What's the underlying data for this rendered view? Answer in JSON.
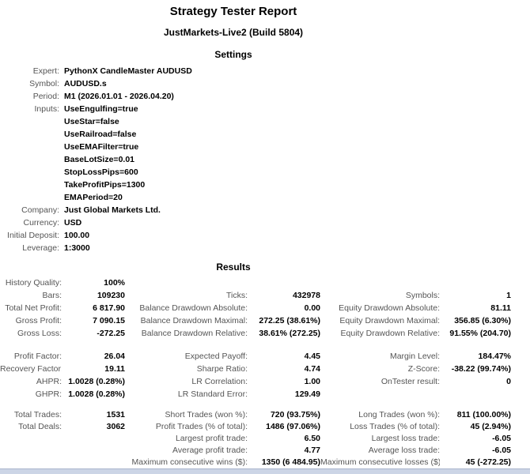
{
  "title": "Strategy Tester Report",
  "subtitle": "JustMarkets-Live2 (Build 5804)",
  "headings": {
    "settings": "Settings",
    "results": "Results"
  },
  "settings": [
    {
      "label": "Expert:",
      "value": "PythonX CandleMaster AUDUSD"
    },
    {
      "label": "Symbol:",
      "value": "AUDUSD.s"
    },
    {
      "label": "Period:",
      "value": "M1 (2026.01.01 - 2026.04.20)"
    },
    {
      "label": "Inputs:",
      "value": "UseEngulfing=true"
    },
    {
      "label": "",
      "value": "UseStar=false"
    },
    {
      "label": "",
      "value": "UseRailroad=false"
    },
    {
      "label": "",
      "value": "UseEMAFilter=true"
    },
    {
      "label": "",
      "value": "BaseLotSize=0.01"
    },
    {
      "label": "",
      "value": "StopLossPips=600"
    },
    {
      "label": "",
      "value": "TakeProfitPips=1300"
    },
    {
      "label": "",
      "value": "EMAPeriod=20"
    },
    {
      "label": "Company:",
      "value": "Just Global Markets Ltd."
    },
    {
      "label": "Currency:",
      "value": "USD"
    },
    {
      "label": "Initial Deposit:",
      "value": "100.00"
    },
    {
      "label": "Leverage:",
      "value": "1:3000"
    }
  ],
  "results": {
    "blocks": [
      {
        "rows": [
          [
            "History Quality:",
            "100%",
            "",
            "",
            "",
            ""
          ],
          [
            "Bars:",
            "109230",
            "Ticks:",
            "432978",
            "Symbols:",
            "1"
          ],
          [
            "Total Net Profit:",
            "6 817.90",
            "Balance Drawdown Absolute:",
            "0.00",
            "Equity Drawdown Absolute:",
            "81.11"
          ],
          [
            "Gross Profit:",
            "7 090.15",
            "Balance Drawdown Maximal:",
            "272.25 (38.61%)",
            "Equity Drawdown Maximal:",
            "356.85 (6.30%)"
          ],
          [
            "Gross Loss:",
            "-272.25",
            "Balance Drawdown Relative:",
            "38.61% (272.25)",
            "Equity Drawdown Relative:",
            "91.55% (204.70)"
          ]
        ]
      },
      {
        "rows": [
          [
            "Profit Factor:",
            "26.04",
            "Expected Payoff:",
            "4.45",
            "Margin Level:",
            "184.47%"
          ],
          [
            "Recovery Factor:",
            "19.11",
            "Sharpe Ratio:",
            "4.74",
            "Z-Score:",
            "-38.22 (99.74%)"
          ],
          [
            "AHPR:",
            "1.0028 (0.28%)",
            "LR Correlation:",
            "1.00",
            "OnTester result:",
            "0"
          ],
          [
            "GHPR:",
            "1.0028 (0.28%)",
            "LR Standard Error:",
            "129.49",
            "",
            ""
          ]
        ]
      },
      {
        "rows": [
          [
            "Total Trades:",
            "1531",
            "Short Trades (won %):",
            "720 (93.75%)",
            "Long Trades (won %):",
            "811 (100.00%)"
          ],
          [
            "Total Deals:",
            "3062",
            "Profit Trades (% of total):",
            "1486 (97.06%)",
            "Loss Trades (% of total):",
            "45 (2.94%)"
          ],
          [
            "",
            "",
            "Largest profit trade:",
            "6.50",
            "Largest loss trade:",
            "-6.05"
          ],
          [
            "",
            "",
            "Average profit trade:",
            "4.77",
            "Average loss trade:",
            "-6.05"
          ],
          [
            "",
            "",
            "Maximum consecutive wins ($):",
            "1350 (6 484.95)",
            "Maximum consecutive losses ($):",
            "45 (-272.25)"
          ]
        ]
      }
    ]
  },
  "colors": {
    "label_gray": "#555555",
    "value_black": "#000000",
    "table_strip": "#ccd5e6",
    "table_strip_border": "#a9b5cc"
  }
}
